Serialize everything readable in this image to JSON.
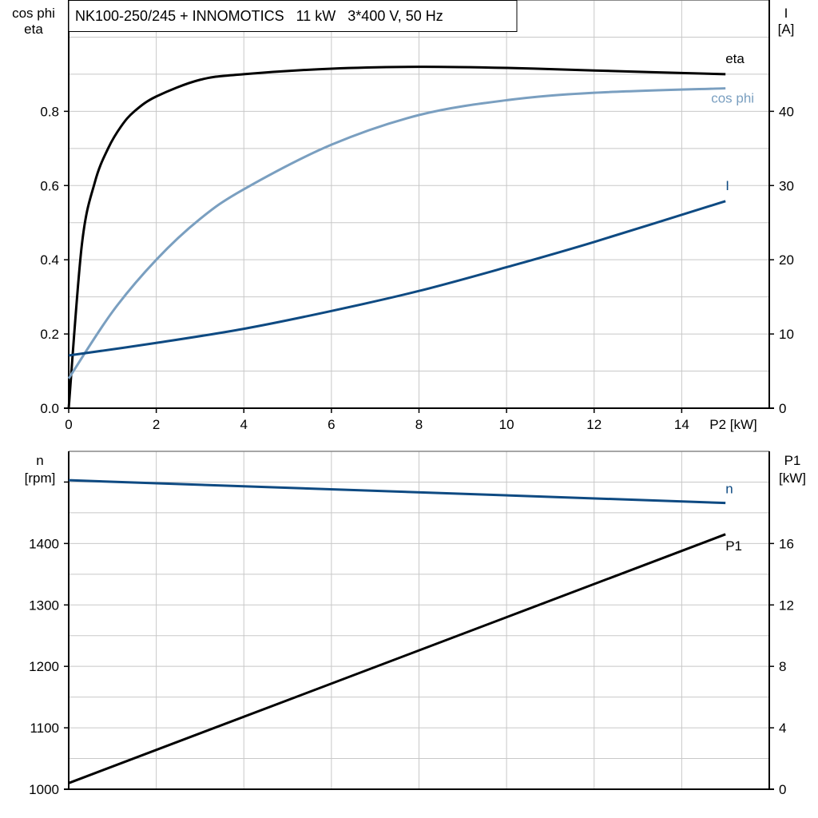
{
  "title": "NK100-250/245 + INNOMOTICS   11 kW   3*400 V, 50 Hz",
  "chart_data": [
    {
      "type": "line",
      "xlabel": "P2 [kW]",
      "ylabel_left": [
        "cos phi",
        "eta"
      ],
      "ylabel_right": [
        "I",
        "[A]"
      ],
      "xlim": [
        0,
        16
      ],
      "ylim_left": [
        0,
        1.1
      ],
      "ylim_right": [
        0,
        55
      ],
      "x_ticks": [
        "0",
        "2",
        "4",
        "6",
        "8",
        "10",
        "12",
        "14"
      ],
      "y_ticks_left": [
        "0.0",
        "0.2",
        "0.4",
        "0.6",
        "0.8"
      ],
      "y_ticks_right": [
        "0",
        "10",
        "20",
        "30",
        "40"
      ],
      "grid": true,
      "series": [
        {
          "name": "eta",
          "axis": "left",
          "color": "#000000",
          "x": [
            0,
            0.3,
            0.6,
            0.9,
            1.2,
            1.5,
            2,
            3,
            4,
            6,
            8,
            10,
            12,
            15
          ],
          "y": [
            0,
            0.44,
            0.61,
            0.7,
            0.76,
            0.8,
            0.84,
            0.885,
            0.9,
            0.915,
            0.92,
            0.917,
            0.91,
            0.9
          ]
        },
        {
          "name": "cos phi",
          "axis": "left",
          "color": "#7a9fc0",
          "x": [
            0,
            1,
            2,
            3,
            4,
            6,
            8,
            10,
            12,
            15
          ],
          "y": [
            0.08,
            0.26,
            0.4,
            0.51,
            0.59,
            0.71,
            0.79,
            0.83,
            0.85,
            0.862
          ]
        },
        {
          "name": "I",
          "axis": "right",
          "color": "#0e4a82",
          "x": [
            0,
            2,
            4,
            6,
            8,
            10,
            12,
            15
          ],
          "y": [
            7.1,
            8.8,
            10.7,
            13.1,
            15.8,
            19.0,
            22.4,
            27.9
          ]
        }
      ]
    },
    {
      "type": "line",
      "ylabel_left": [
        "n",
        "[rpm]"
      ],
      "ylabel_right": [
        "P1",
        "[kW]"
      ],
      "xlim": [
        0,
        16
      ],
      "ylim_left": [
        1000,
        1550
      ],
      "ylim_right": [
        0,
        22
      ],
      "y_ticks_left": [
        "1000",
        "1100",
        "1200",
        "1300",
        "1400"
      ],
      "y_ticks_right": [
        "0",
        "4",
        "8",
        "12",
        "16"
      ],
      "grid": true,
      "series": [
        {
          "name": "n",
          "axis": "left",
          "color": "#0e4a82",
          "x": [
            0,
            15
          ],
          "y": [
            1503,
            1466
          ]
        },
        {
          "name": "P1",
          "axis": "right",
          "color": "#000000",
          "x": [
            0,
            15
          ],
          "y": [
            0.4,
            16.6
          ]
        }
      ]
    }
  ]
}
